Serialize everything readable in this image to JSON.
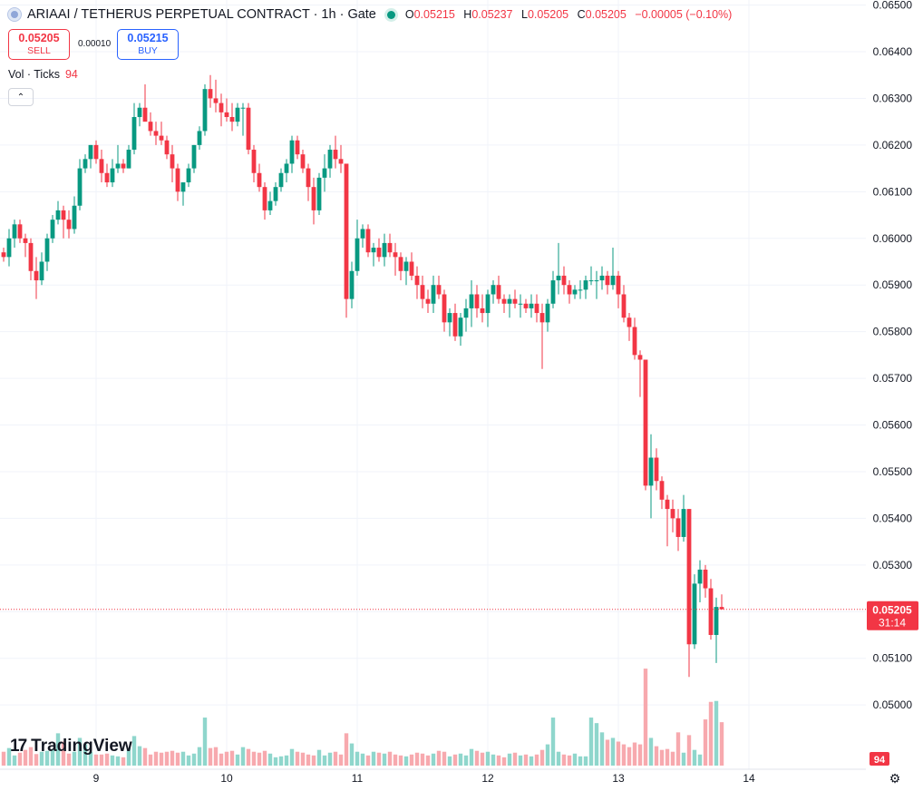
{
  "header": {
    "title": "ARIAAI / TETHERUS PERPETUAL CONTRACT · 1h · Gate",
    "ohlc": {
      "o_label": "O",
      "o": "0.05215",
      "h_label": "H",
      "h": "0.05237",
      "l_label": "L",
      "l": "0.05205",
      "c_label": "C",
      "c": "0.05205",
      "change": "−0.00005 (−0.10%)"
    }
  },
  "trade": {
    "sell_price": "0.05205",
    "sell_label": "SELL",
    "spread": "0.00010",
    "buy_price": "0.05215",
    "buy_label": "BUY"
  },
  "volume_legend": {
    "label": "Vol · Ticks",
    "value": "94"
  },
  "collapse_icon": "chevron-up-icon",
  "logo_text": "TradingView",
  "settings_icon": "gear-icon",
  "colors": {
    "up": "#089981",
    "down": "#f23645",
    "up_vol": "#8fd6cc",
    "down_vol": "#f7a9ae",
    "grid": "#f0f3fa"
  },
  "chart_data": {
    "type": "candlestick",
    "y_ticks": [
      "0.06500",
      "0.06400",
      "0.06300",
      "0.06200",
      "0.06100",
      "0.06000",
      "0.05900",
      "0.05800",
      "0.05700",
      "0.05600",
      "0.05500",
      "0.05400",
      "0.05300",
      "0.05200",
      "0.05100",
      "0.05000"
    ],
    "ylim": [
      0.0494,
      0.06505
    ],
    "x_ticks": [
      "9",
      "10",
      "11",
      "12",
      "13",
      "14"
    ],
    "last_price": "0.05205",
    "last_countdown": "31:14",
    "last_volume": "94",
    "candles": [
      [
        0.0597,
        0.0598,
        0.0595,
        0.0596,
        30
      ],
      [
        0.0596,
        0.0602,
        0.0594,
        0.06,
        38
      ],
      [
        0.06,
        0.0604,
        0.0598,
        0.0603,
        22
      ],
      [
        0.0603,
        0.0604,
        0.0599,
        0.06,
        28
      ],
      [
        0.06,
        0.0601,
        0.0596,
        0.0599,
        34
      ],
      [
        0.0599,
        0.06,
        0.0591,
        0.0593,
        40
      ],
      [
        0.0593,
        0.0596,
        0.0587,
        0.0591,
        25
      ],
      [
        0.0591,
        0.0597,
        0.059,
        0.0595,
        30
      ],
      [
        0.0595,
        0.0601,
        0.0593,
        0.06,
        32
      ],
      [
        0.06,
        0.0605,
        0.0599,
        0.0604,
        36
      ],
      [
        0.0604,
        0.0608,
        0.0603,
        0.0606,
        70
      ],
      [
        0.0606,
        0.0607,
        0.06,
        0.0604,
        52
      ],
      [
        0.0604,
        0.0606,
        0.06,
        0.0602,
        26
      ],
      [
        0.0602,
        0.0609,
        0.0601,
        0.0607,
        30
      ],
      [
        0.0607,
        0.0617,
        0.0606,
        0.0615,
        60
      ],
      [
        0.0615,
        0.0618,
        0.0614,
        0.0617,
        46
      ],
      [
        0.0617,
        0.062,
        0.0615,
        0.062,
        30
      ],
      [
        0.062,
        0.0621,
        0.0616,
        0.0617,
        24
      ],
      [
        0.0617,
        0.0619,
        0.0612,
        0.0614,
        24
      ],
      [
        0.0614,
        0.0616,
        0.0611,
        0.0612,
        26
      ],
      [
        0.0612,
        0.0617,
        0.0611,
        0.0615,
        22
      ],
      [
        0.0615,
        0.062,
        0.0614,
        0.0616,
        20
      ],
      [
        0.0616,
        0.0617,
        0.0614,
        0.0615,
        18
      ],
      [
        0.0615,
        0.062,
        0.0615,
        0.0619,
        38
      ],
      [
        0.0619,
        0.0629,
        0.0618,
        0.0626,
        64
      ],
      [
        0.0626,
        0.0629,
        0.0624,
        0.0628,
        42
      ],
      [
        0.0628,
        0.0633,
        0.0626,
        0.0625,
        38
      ],
      [
        0.0625,
        0.0627,
        0.0622,
        0.0623,
        24
      ],
      [
        0.0623,
        0.0625,
        0.062,
        0.0622,
        30
      ],
      [
        0.0622,
        0.0625,
        0.062,
        0.0621,
        28
      ],
      [
        0.0621,
        0.0622,
        0.0617,
        0.0618,
        30
      ],
      [
        0.0618,
        0.062,
        0.0612,
        0.0615,
        32
      ],
      [
        0.0615,
        0.0616,
        0.0608,
        0.061,
        28
      ],
      [
        0.061,
        0.0612,
        0.0607,
        0.0612,
        30
      ],
      [
        0.0612,
        0.0616,
        0.0611,
        0.0615,
        22
      ],
      [
        0.0615,
        0.062,
        0.0614,
        0.062,
        26
      ],
      [
        0.062,
        0.0624,
        0.0619,
        0.0623,
        40
      ],
      [
        0.0623,
        0.0633,
        0.0622,
        0.0632,
        104
      ],
      [
        0.0632,
        0.0635,
        0.0628,
        0.063,
        38
      ],
      [
        0.063,
        0.0634,
        0.0627,
        0.0629,
        40
      ],
      [
        0.0629,
        0.0631,
        0.0624,
        0.0627,
        26
      ],
      [
        0.0627,
        0.063,
        0.0625,
        0.0626,
        30
      ],
      [
        0.0626,
        0.0629,
        0.0623,
        0.0625,
        32
      ],
      [
        0.0625,
        0.0629,
        0.0624,
        0.0628,
        24
      ],
      [
        0.0628,
        0.0629,
        0.0622,
        0.0628,
        40
      ],
      [
        0.0628,
        0.0629,
        0.0618,
        0.0619,
        36
      ],
      [
        0.0619,
        0.062,
        0.0612,
        0.0614,
        30
      ],
      [
        0.0614,
        0.0616,
        0.061,
        0.0611,
        28
      ],
      [
        0.0611,
        0.0612,
        0.0604,
        0.0606,
        32
      ],
      [
        0.0606,
        0.061,
        0.0605,
        0.0608,
        26
      ],
      [
        0.0608,
        0.0612,
        0.0607,
        0.0611,
        18
      ],
      [
        0.0611,
        0.0615,
        0.061,
        0.0614,
        20
      ],
      [
        0.0614,
        0.0617,
        0.0612,
        0.0616,
        22
      ],
      [
        0.0616,
        0.0622,
        0.0614,
        0.0621,
        36
      ],
      [
        0.0621,
        0.0622,
        0.0617,
        0.0618,
        30
      ],
      [
        0.0618,
        0.0619,
        0.0614,
        0.0615,
        28
      ],
      [
        0.0615,
        0.0616,
        0.0608,
        0.0611,
        24
      ],
      [
        0.0611,
        0.0613,
        0.0603,
        0.0606,
        22
      ],
      [
        0.0606,
        0.0614,
        0.0605,
        0.0613,
        34
      ],
      [
        0.0613,
        0.0618,
        0.061,
        0.0615,
        22
      ],
      [
        0.0615,
        0.062,
        0.0613,
        0.0619,
        28
      ],
      [
        0.0619,
        0.0622,
        0.0615,
        0.0617,
        30
      ],
      [
        0.0617,
        0.062,
        0.0614,
        0.0616,
        24
      ],
      [
        0.0616,
        0.0616,
        0.0583,
        0.0587,
        70
      ],
      [
        0.0587,
        0.0595,
        0.0585,
        0.0593,
        48
      ],
      [
        0.0593,
        0.0604,
        0.0592,
        0.06,
        30
      ],
      [
        0.06,
        0.0603,
        0.0598,
        0.0602,
        26
      ],
      [
        0.0602,
        0.0603,
        0.0596,
        0.0597,
        22
      ],
      [
        0.0597,
        0.0599,
        0.0594,
        0.0598,
        30
      ],
      [
        0.0598,
        0.06,
        0.0595,
        0.0596,
        28
      ],
      [
        0.0596,
        0.0601,
        0.0594,
        0.0599,
        26
      ],
      [
        0.0599,
        0.0601,
        0.0596,
        0.0597,
        30
      ],
      [
        0.0597,
        0.0599,
        0.0592,
        0.0596,
        24
      ],
      [
        0.0596,
        0.0597,
        0.0591,
        0.0593,
        22
      ],
      [
        0.0593,
        0.0596,
        0.059,
        0.0595,
        20
      ],
      [
        0.0595,
        0.0597,
        0.0591,
        0.0592,
        24
      ],
      [
        0.0592,
        0.0594,
        0.0587,
        0.059,
        28
      ],
      [
        0.059,
        0.0592,
        0.0585,
        0.0587,
        26
      ],
      [
        0.0587,
        0.0589,
        0.0584,
        0.0586,
        22
      ],
      [
        0.0586,
        0.0592,
        0.0584,
        0.059,
        26
      ],
      [
        0.059,
        0.0592,
        0.0587,
        0.0588,
        32
      ],
      [
        0.0588,
        0.0589,
        0.058,
        0.0582,
        30
      ],
      [
        0.0582,
        0.0585,
        0.0579,
        0.0584,
        20
      ],
      [
        0.0584,
        0.0586,
        0.0578,
        0.0579,
        24
      ],
      [
        0.0579,
        0.0584,
        0.0577,
        0.0583,
        26
      ],
      [
        0.0583,
        0.0587,
        0.058,
        0.0585,
        22
      ],
      [
        0.0585,
        0.0591,
        0.0581,
        0.0588,
        36
      ],
      [
        0.0588,
        0.059,
        0.0583,
        0.0585,
        32
      ],
      [
        0.0585,
        0.0588,
        0.0582,
        0.0584,
        28
      ],
      [
        0.0584,
        0.0589,
        0.0581,
        0.0588,
        30
      ],
      [
        0.0588,
        0.0591,
        0.0586,
        0.059,
        24
      ],
      [
        0.059,
        0.0592,
        0.0586,
        0.0587,
        22
      ],
      [
        0.0587,
        0.0588,
        0.0584,
        0.0586,
        18
      ],
      [
        0.0586,
        0.0588,
        0.0583,
        0.0587,
        26
      ],
      [
        0.0587,
        0.0589,
        0.0585,
        0.0586,
        28
      ],
      [
        0.0586,
        0.0588,
        0.0583,
        0.0586,
        22
      ],
      [
        0.0586,
        0.0587,
        0.0584,
        0.0585,
        24
      ],
      [
        0.0585,
        0.0588,
        0.0583,
        0.0586,
        20
      ],
      [
        0.0586,
        0.0588,
        0.0582,
        0.0584,
        24
      ],
      [
        0.0584,
        0.0586,
        0.0572,
        0.0582,
        34
      ],
      [
        0.0582,
        0.0587,
        0.058,
        0.0586,
        46
      ],
      [
        0.0586,
        0.0593,
        0.0585,
        0.0591,
        104
      ],
      [
        0.0591,
        0.0599,
        0.0588,
        0.0592,
        30
      ],
      [
        0.0592,
        0.0594,
        0.0588,
        0.059,
        24
      ],
      [
        0.059,
        0.0591,
        0.0586,
        0.0588,
        22
      ],
      [
        0.0588,
        0.059,
        0.0587,
        0.0589,
        26
      ],
      [
        0.0589,
        0.0591,
        0.0587,
        0.0589,
        20
      ],
      [
        0.0589,
        0.0592,
        0.0587,
        0.0591,
        20
      ],
      [
        0.0591,
        0.0594,
        0.059,
        0.0591,
        104
      ],
      [
        0.0591,
        0.0593,
        0.0587,
        0.0591,
        92
      ],
      [
        0.0591,
        0.0594,
        0.0589,
        0.0592,
        72
      ],
      [
        0.0592,
        0.0593,
        0.0588,
        0.059,
        56
      ],
      [
        0.059,
        0.0598,
        0.0589,
        0.0592,
        60
      ],
      [
        0.0592,
        0.0593,
        0.0585,
        0.0588,
        52
      ],
      [
        0.0588,
        0.059,
        0.0582,
        0.0583,
        46
      ],
      [
        0.0583,
        0.0584,
        0.0578,
        0.0581,
        40
      ],
      [
        0.0581,
        0.0583,
        0.0574,
        0.0575,
        50
      ],
      [
        0.0575,
        0.0576,
        0.0566,
        0.0574,
        46
      ],
      [
        0.0574,
        0.0574,
        0.0546,
        0.0547,
        210
      ],
      [
        0.0547,
        0.0558,
        0.054,
        0.0553,
        60
      ],
      [
        0.0553,
        0.0555,
        0.0546,
        0.0548,
        42
      ],
      [
        0.0548,
        0.0549,
        0.0542,
        0.0544,
        34
      ],
      [
        0.0544,
        0.0545,
        0.0534,
        0.0542,
        36
      ],
      [
        0.0542,
        0.0544,
        0.0537,
        0.054,
        30
      ],
      [
        0.054,
        0.0542,
        0.0533,
        0.0536,
        72
      ],
      [
        0.0536,
        0.0545,
        0.0535,
        0.0542,
        28
      ],
      [
        0.0542,
        0.0542,
        0.0506,
        0.0513,
        66
      ],
      [
        0.0513,
        0.0528,
        0.0512,
        0.0526,
        34
      ],
      [
        0.0526,
        0.0531,
        0.0522,
        0.0529,
        24
      ],
      [
        0.0529,
        0.053,
        0.0523,
        0.0525,
        100
      ],
      [
        0.0525,
        0.0527,
        0.0514,
        0.0515,
        138
      ],
      [
        0.0515,
        0.0523,
        0.0509,
        0.0521,
        140
      ],
      [
        0.0521,
        0.05237,
        0.05205,
        0.05205,
        94
      ]
    ],
    "volume_ylim": [
      0,
      220
    ]
  }
}
